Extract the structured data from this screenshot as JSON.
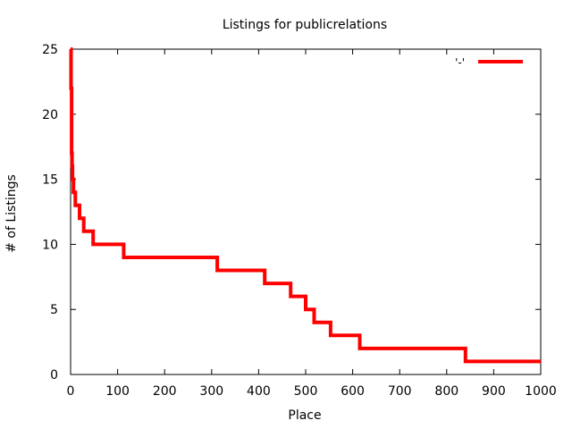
{
  "chart_data": {
    "type": "line",
    "title": "Listings for publicrelations",
    "xlabel": "Place",
    "ylabel": "# of Listings",
    "xlim": [
      0,
      1000
    ],
    "ylim": [
      0,
      25
    ],
    "xticks": [
      0,
      100,
      200,
      300,
      400,
      500,
      600,
      700,
      800,
      900,
      1000
    ],
    "yticks": [
      0,
      5,
      10,
      15,
      20,
      25
    ],
    "grid": false,
    "legend_position": "top-right",
    "legend_label": "'-'",
    "series": [
      {
        "color": "#ff0000",
        "step": "post",
        "points": [
          [
            0,
            25
          ],
          [
            1,
            22
          ],
          [
            2,
            17
          ],
          [
            3,
            16
          ],
          [
            4,
            15
          ],
          [
            6,
            14
          ],
          [
            10,
            13
          ],
          [
            19,
            12
          ],
          [
            28,
            11
          ],
          [
            48,
            10
          ],
          [
            113,
            9
          ],
          [
            312,
            8
          ],
          [
            413,
            7
          ],
          [
            468,
            6
          ],
          [
            500,
            5
          ],
          [
            518,
            4
          ],
          [
            553,
            3
          ],
          [
            615,
            2
          ],
          [
            840,
            1
          ],
          [
            1000,
            1
          ]
        ]
      }
    ]
  }
}
